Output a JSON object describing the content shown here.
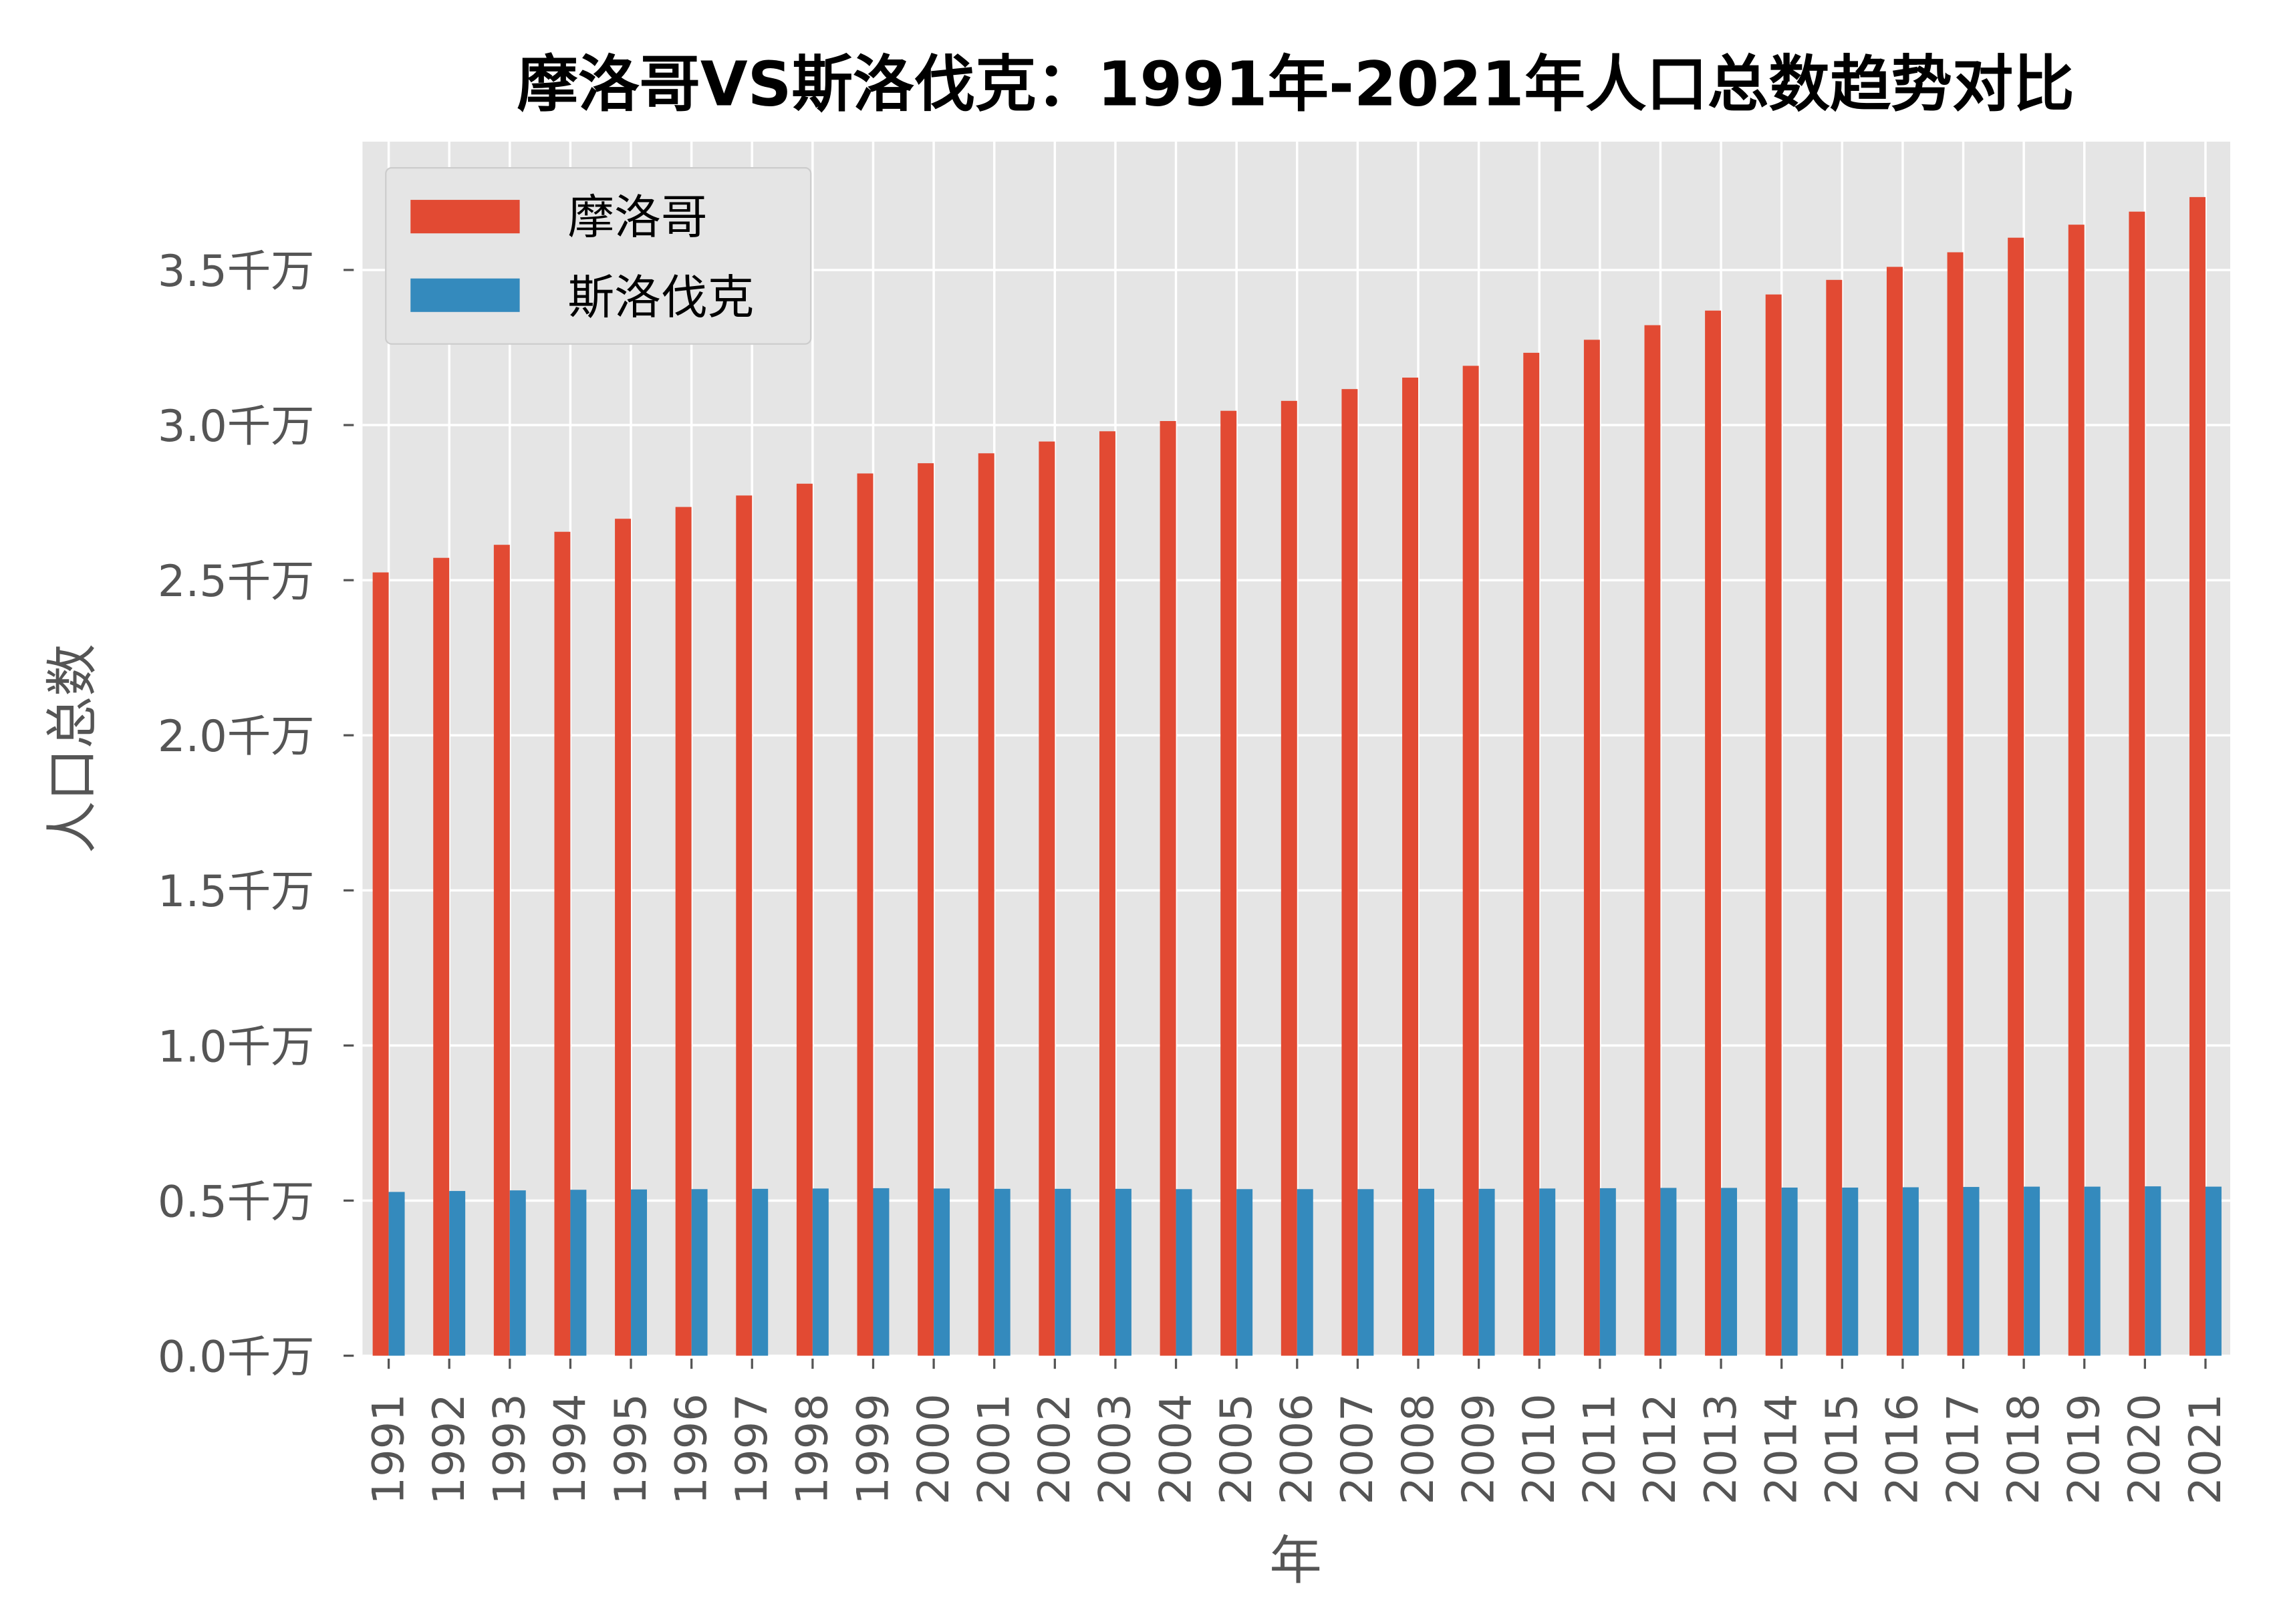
{
  "chart_data": {
    "type": "bar",
    "title": "摩洛哥VS斯洛伐克：1991年-2021年人口总数趋势对比",
    "xlabel": "年",
    "ylabel": "人口总数",
    "ylim": [
      0,
      3.9
    ],
    "yunit": "千万",
    "yticks": [
      0,
      0.5,
      1.0,
      1.5,
      2.0,
      2.5,
      3.0,
      3.5
    ],
    "ytick_labels": [
      "0.0千万",
      "0.5千万",
      "1.0千万",
      "1.5千万",
      "2.0千万",
      "2.5千万",
      "3.0千万",
      "3.5千万"
    ],
    "grid": true,
    "legend_position": "top-left",
    "categories": [
      "1991",
      "1992",
      "1993",
      "1994",
      "1995",
      "1996",
      "1997",
      "1998",
      "1999",
      "2000",
      "2001",
      "2002",
      "2003",
      "2004",
      "2005",
      "2006",
      "2007",
      "2008",
      "2009",
      "2010",
      "2011",
      "2012",
      "2013",
      "2014",
      "2015",
      "2016",
      "2017",
      "2018",
      "2019",
      "2020",
      "2021"
    ],
    "series": [
      {
        "name": "摩洛哥",
        "color": "#E24A33",
        "values": [
          2.525,
          2.572,
          2.614,
          2.656,
          2.698,
          2.736,
          2.773,
          2.811,
          2.844,
          2.877,
          2.909,
          2.947,
          2.98,
          3.013,
          3.046,
          3.078,
          3.116,
          3.153,
          3.191,
          3.233,
          3.275,
          3.322,
          3.369,
          3.421,
          3.468,
          3.51,
          3.557,
          3.604,
          3.646,
          3.688,
          3.735
        ]
      },
      {
        "name": "斯洛伐克",
        "color": "#348ABD",
        "values": [
          0.528,
          0.531,
          0.533,
          0.535,
          0.536,
          0.537,
          0.538,
          0.539,
          0.54,
          0.539,
          0.538,
          0.538,
          0.538,
          0.537,
          0.537,
          0.537,
          0.537,
          0.538,
          0.538,
          0.539,
          0.54,
          0.541,
          0.541,
          0.542,
          0.542,
          0.543,
          0.544,
          0.545,
          0.545,
          0.546,
          0.545
        ]
      }
    ]
  }
}
